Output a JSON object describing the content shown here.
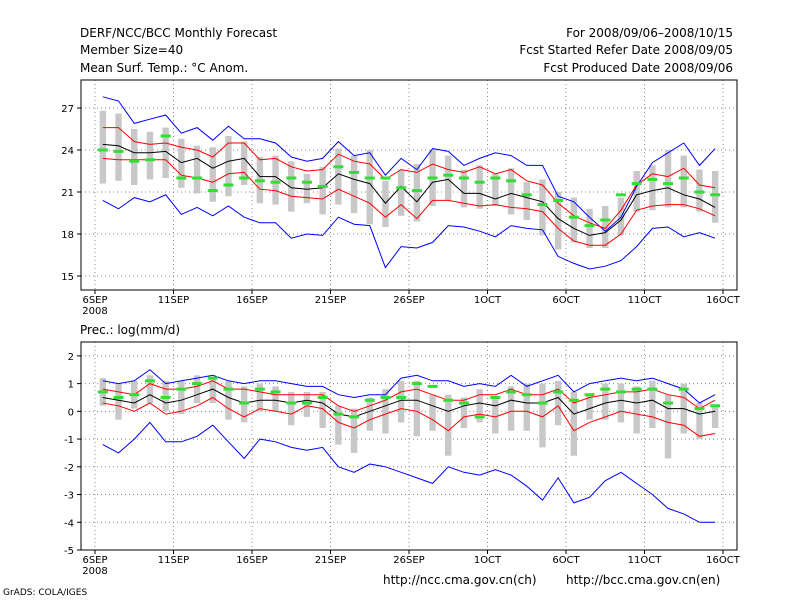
{
  "header": {
    "left_line1": "DERF/NCC/BCC Monthly Forecast",
    "left_line2": "Member Size=40",
    "left_line3": "Mean Surf. Temp.: °C Anom.",
    "right_line1": "For 2008/09/06–2008/10/15",
    "right_line2": "Fcst Started Refer Date 2008/09/05",
    "right_line3": "Fcst Produced Date 2008/09/06"
  },
  "footer": {
    "credit": "GrADS: COLA/IGES",
    "url_cn": "http://ncc.cma.gov.cn(ch)",
    "url_en": "http://bcc.cma.gov.cn(en)"
  },
  "colors": {
    "max_min": "#0000ff",
    "spread": "#ff0000",
    "mean": "#000000",
    "box": "#c8c8c8",
    "marker": "#33dd33"
  },
  "chart_data": [
    {
      "type": "line",
      "title": "Mean Surf. Temp.: °C Anom.",
      "ylim": [
        14,
        29
      ],
      "yticks": [
        15,
        18,
        21,
        24,
        27
      ],
      "x_tick_days": [
        0,
        5,
        10,
        15,
        20,
        25,
        30,
        35,
        40
      ],
      "x_tick_labels": [
        "6SEP",
        "11SEP",
        "16SEP",
        "21SEP",
        "26SEP",
        "1OCT",
        "6OCT",
        "11OCT",
        "16OCT"
      ],
      "x_year_label": "2008",
      "days": 40,
      "series": [
        {
          "name": "max",
          "color": "blue",
          "values": [
            27.8,
            27.5,
            25.9,
            26.2,
            26.5,
            25.2,
            25.6,
            24.7,
            25.7,
            24.8,
            24.8,
            24.5,
            23.5,
            23.2,
            23.4,
            24.6,
            23.6,
            23.8,
            22.2,
            23.4,
            22.6,
            24.1,
            23.9,
            22.9,
            23.4,
            23.8,
            23.6,
            22.9,
            22.9,
            20.7,
            20.3,
            19.2,
            18.2,
            19.2,
            21.4,
            23.1,
            23.8,
            24.5,
            22.9,
            24.1
          ]
        },
        {
          "name": "upper",
          "color": "red",
          "values": [
            25.6,
            25.6,
            24.6,
            24.4,
            24.5,
            24.2,
            24.0,
            23.5,
            24.5,
            24.5,
            23.3,
            23.4,
            22.8,
            22.5,
            22.6,
            23.7,
            23.2,
            23.0,
            21.9,
            22.6,
            22.4,
            23.0,
            22.6,
            22.4,
            22.8,
            22.3,
            22.6,
            21.8,
            21.5,
            20.2,
            19.3,
            18.8,
            18.4,
            19.7,
            21.5,
            22.3,
            22.1,
            22.7,
            21.5,
            21.3
          ]
        },
        {
          "name": "mean",
          "color": "black",
          "values": [
            24.4,
            24.3,
            23.8,
            23.8,
            23.9,
            23.1,
            23.4,
            22.7,
            23.2,
            23.4,
            22.1,
            22.1,
            21.3,
            21.2,
            21.3,
            22.3,
            21.9,
            21.6,
            20.2,
            21.4,
            20.3,
            21.7,
            21.9,
            20.9,
            20.9,
            20.5,
            20.9,
            20.6,
            20.3,
            19.1,
            18.4,
            17.9,
            18.1,
            19.0,
            20.8,
            21.1,
            21.3,
            20.8,
            20.5,
            19.9
          ]
        },
        {
          "name": "lower",
          "color": "red",
          "values": [
            23.4,
            23.3,
            23.3,
            23.3,
            23.3,
            22.2,
            22.0,
            21.7,
            22.3,
            22.4,
            21.2,
            21.1,
            20.7,
            20.6,
            20.5,
            21.2,
            20.7,
            20.2,
            19.2,
            20.1,
            19.1,
            20.4,
            20.4,
            20.2,
            20.0,
            20.1,
            19.9,
            19.8,
            19.6,
            18.4,
            17.5,
            17.2,
            17.2,
            18.0,
            19.7,
            20.0,
            20.1,
            20.1,
            19.8,
            19.3
          ]
        },
        {
          "name": "min",
          "color": "blue",
          "values": [
            20.4,
            19.8,
            20.6,
            20.3,
            20.8,
            19.4,
            19.9,
            19.3,
            20.0,
            19.2,
            18.8,
            18.8,
            17.7,
            18.0,
            17.9,
            19.2,
            18.7,
            18.6,
            15.6,
            17.1,
            17.0,
            17.4,
            18.6,
            18.5,
            18.2,
            17.8,
            18.6,
            18.4,
            18.3,
            16.4,
            15.9,
            15.5,
            15.7,
            16.1,
            17.1,
            18.4,
            18.5,
            17.8,
            18.1,
            17.7
          ]
        }
      ],
      "boxes": [
        [
          21.6,
          26.8
        ],
        [
          21.8,
          26.6
        ],
        [
          21.5,
          25.5
        ],
        [
          21.9,
          25.3
        ],
        [
          22.0,
          25.6
        ],
        [
          21.3,
          24.8
        ],
        [
          20.9,
          24.3
        ],
        [
          20.3,
          24.2
        ],
        [
          20.7,
          25.0
        ],
        [
          21.5,
          24.6
        ],
        [
          20.2,
          23.5
        ],
        [
          20.1,
          23.6
        ],
        [
          19.6,
          23.2
        ],
        [
          20.2,
          22.3
        ],
        [
          19.4,
          22.8
        ],
        [
          20.1,
          24.1
        ],
        [
          19.5,
          23.6
        ],
        [
          18.7,
          24.0
        ],
        [
          18.5,
          21.8
        ],
        [
          19.3,
          22.6
        ],
        [
          18.9,
          23.0
        ],
        [
          20.0,
          24.0
        ],
        [
          20.4,
          23.6
        ],
        [
          19.9,
          22.6
        ],
        [
          19.8,
          22.9
        ],
        [
          20.0,
          22.3
        ],
        [
          19.4,
          22.7
        ],
        [
          19.0,
          21.7
        ],
        [
          17.9,
          21.9
        ],
        [
          16.9,
          21.0
        ],
        [
          17.4,
          20.6
        ],
        [
          17.0,
          19.8
        ],
        [
          17.0,
          20.0
        ],
        [
          17.9,
          20.6
        ],
        [
          19.6,
          22.5
        ],
        [
          19.7,
          22.9
        ],
        [
          19.9,
          24.0
        ],
        [
          19.9,
          23.6
        ],
        [
          19.6,
          22.6
        ],
        [
          18.8,
          22.5
        ]
      ],
      "markers": [
        24.0,
        23.9,
        23.2,
        23.3,
        25.0,
        22.0,
        22.0,
        21.1,
        21.5,
        22.0,
        21.8,
        21.7,
        22.0,
        21.7,
        21.4,
        22.8,
        22.4,
        22.0,
        22.0,
        21.3,
        21.1,
        22.0,
        22.2,
        22.0,
        21.7,
        22.0,
        21.8,
        20.8,
        20.1,
        20.4,
        19.2,
        18.6,
        19.0,
        20.8,
        21.6,
        21.9,
        21.6,
        22.0,
        21.0,
        20.8
      ]
    },
    {
      "type": "line",
      "title": "Prec.: log(mm/d)",
      "ylim": [
        -5,
        2.5
      ],
      "yticks": [
        -5,
        -4,
        -3,
        -2,
        -1,
        0,
        1,
        2
      ],
      "x_tick_days": [
        0,
        5,
        10,
        15,
        20,
        25,
        30,
        35,
        40
      ],
      "x_tick_labels": [
        "6SEP",
        "11SEP",
        "16SEP",
        "21SEP",
        "26SEP",
        "1OCT",
        "6OCT",
        "11OCT",
        "16OCT"
      ],
      "x_year_label": "2008",
      "days": 40,
      "series": [
        {
          "name": "max",
          "color": "blue",
          "values": [
            1.1,
            1.0,
            1.1,
            1.5,
            1.0,
            1.1,
            1.2,
            1.3,
            1.1,
            1.0,
            1.1,
            1.1,
            1.0,
            0.9,
            0.9,
            0.6,
            0.5,
            0.6,
            0.6,
            1.2,
            1.3,
            1.1,
            1.1,
            0.9,
            1.0,
            0.9,
            1.3,
            0.9,
            1.1,
            1.3,
            0.7,
            1.0,
            1.1,
            1.2,
            1.1,
            1.2,
            1.0,
            0.8,
            0.3,
            0.6
          ]
        },
        {
          "name": "upper",
          "color": "red",
          "values": [
            0.8,
            0.7,
            0.6,
            1.0,
            0.8,
            0.8,
            0.9,
            1.1,
            0.8,
            0.8,
            0.7,
            0.6,
            0.6,
            0.6,
            0.6,
            0.2,
            0.0,
            0.2,
            0.4,
            0.7,
            0.8,
            0.6,
            0.4,
            0.4,
            0.6,
            0.6,
            0.8,
            0.6,
            0.6,
            0.8,
            0.3,
            0.5,
            0.6,
            0.7,
            0.7,
            0.8,
            0.6,
            0.5,
            0.1,
            0.4
          ]
        },
        {
          "name": "mean",
          "color": "black",
          "values": [
            0.5,
            0.4,
            0.3,
            0.6,
            0.3,
            0.4,
            0.6,
            0.8,
            0.5,
            0.3,
            0.4,
            0.4,
            0.3,
            0.4,
            0.3,
            -0.1,
            -0.2,
            0.0,
            0.2,
            0.4,
            0.4,
            0.2,
            0.0,
            0.2,
            0.3,
            0.2,
            0.4,
            0.3,
            0.3,
            0.5,
            -0.1,
            0.1,
            0.3,
            0.4,
            0.3,
            0.4,
            0.1,
            0.1,
            -0.1,
            0.0
          ]
        },
        {
          "name": "lower",
          "color": "red",
          "values": [
            0.3,
            0.2,
            0.0,
            0.3,
            -0.1,
            0.0,
            0.2,
            0.5,
            0.1,
            -0.2,
            0.1,
            0.0,
            -0.1,
            0.2,
            0.1,
            -0.4,
            -0.6,
            -0.3,
            -0.1,
            0.1,
            0.0,
            -0.3,
            -0.7,
            -0.2,
            -0.1,
            -0.2,
            0.0,
            0.0,
            -0.2,
            0.2,
            -0.7,
            -0.4,
            -0.2,
            0.0,
            -0.1,
            -0.2,
            -0.4,
            -0.5,
            -0.9,
            -0.8
          ]
        },
        {
          "name": "min",
          "color": "blue",
          "values": [
            -1.2,
            -1.5,
            -1.0,
            -0.4,
            -1.1,
            -1.1,
            -0.9,
            -0.5,
            -1.1,
            -1.7,
            -1.0,
            -1.1,
            -1.3,
            -1.4,
            -1.3,
            -2.0,
            -2.2,
            -1.9,
            -2.0,
            -2.2,
            -2.4,
            -2.6,
            -2.0,
            -2.2,
            -2.3,
            -2.1,
            -2.3,
            -2.7,
            -3.2,
            -2.4,
            -3.3,
            -3.1,
            -2.5,
            -2.2,
            -2.6,
            -3.0,
            -3.5,
            -3.7,
            -4.0,
            -4.0
          ]
        }
      ],
      "boxes": [
        [
          0.2,
          1.2
        ],
        [
          -0.3,
          1.0
        ],
        [
          0.1,
          1.1
        ],
        [
          0.3,
          1.3
        ],
        [
          0.0,
          1.1
        ],
        [
          -0.1,
          1.1
        ],
        [
          0.3,
          1.3
        ],
        [
          0.3,
          1.2
        ],
        [
          -0.3,
          1.1
        ],
        [
          -0.4,
          0.9
        ],
        [
          0.0,
          1.0
        ],
        [
          0.0,
          0.9
        ],
        [
          -0.5,
          0.7
        ],
        [
          -0.2,
          0.7
        ],
        [
          -0.6,
          0.7
        ],
        [
          -1.2,
          0.2
        ],
        [
          -1.5,
          0.1
        ],
        [
          -0.7,
          0.5
        ],
        [
          -0.8,
          0.8
        ],
        [
          -0.4,
          1.1
        ],
        [
          -0.9,
          1.1
        ],
        [
          -0.7,
          0.6
        ],
        [
          -1.6,
          0.6
        ],
        [
          -0.6,
          0.5
        ],
        [
          -0.4,
          0.8
        ],
        [
          -0.8,
          0.5
        ],
        [
          -0.7,
          0.9
        ],
        [
          -0.7,
          1.0
        ],
        [
          -1.3,
          1.0
        ],
        [
          -0.5,
          1.1
        ],
        [
          -1.6,
          0.7
        ],
        [
          -0.3,
          0.6
        ],
        [
          -0.3,
          1.0
        ],
        [
          -0.4,
          1.0
        ],
        [
          -0.8,
          0.9
        ],
        [
          -0.6,
          1.1
        ],
        [
          -1.7,
          0.6
        ],
        [
          -0.8,
          1.0
        ],
        [
          -1.0,
          0.3
        ],
        [
          -0.6,
          0.2
        ]
      ],
      "markers": [
        0.7,
        0.5,
        0.6,
        1.1,
        0.5,
        0.8,
        1.0,
        1.2,
        0.8,
        0.3,
        0.8,
        0.7,
        0.3,
        0.3,
        0.5,
        -0.1,
        -0.2,
        0.4,
        0.5,
        0.5,
        1.0,
        0.9,
        0.4,
        0.3,
        -0.2,
        0.5,
        0.7,
        0.6,
        0.3,
        0.7,
        0.4,
        0.6,
        0.8,
        0.7,
        0.8,
        0.8,
        0.3,
        0.8,
        0.1,
        0.2
      ]
    }
  ]
}
